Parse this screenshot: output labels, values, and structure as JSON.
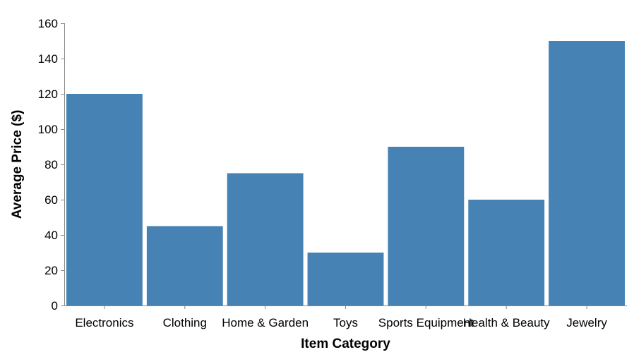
{
  "chart_data": {
    "type": "bar",
    "title": "",
    "xlabel": "Item Category",
    "ylabel": "Average Price ($)",
    "categories": [
      "Electronics",
      "Clothing",
      "Home & Garden",
      "Toys",
      "Sports Equipment",
      "Health & Beauty",
      "Jewelry"
    ],
    "values": [
      120,
      45,
      75,
      30,
      90,
      60,
      150
    ],
    "ylim": [
      0,
      160
    ],
    "yticks": [
      0,
      20,
      40,
      60,
      80,
      100,
      120,
      140,
      160
    ],
    "grid": false,
    "bar_color": "#4682b4"
  }
}
